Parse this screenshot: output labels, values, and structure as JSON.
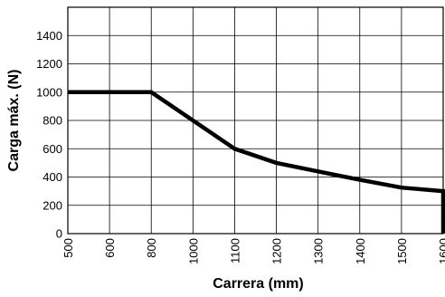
{
  "chart_data": {
    "type": "line",
    "title": "",
    "xlabel": "Carrera (mm)",
    "ylabel": "Carga máx. (N)",
    "xlim": [
      500,
      1600
    ],
    "ylim": [
      0,
      1600
    ],
    "x_ticks": [
      "500",
      "600",
      "800",
      "1000",
      "1100",
      "1200",
      "1300",
      "1400",
      "1500",
      "1600"
    ],
    "y_ticks": [
      "0",
      "200",
      "400",
      "600",
      "800",
      "1000",
      "1200",
      "1400"
    ],
    "grid": true,
    "legend": "none",
    "series": [
      {
        "color": "#000000",
        "points": [
          {
            "x": 500,
            "y": 1000
          },
          {
            "x": 800,
            "y": 1000
          },
          {
            "x": 1000,
            "y": 800
          },
          {
            "x": 1100,
            "y": 600
          },
          {
            "x": 1200,
            "y": 500
          },
          {
            "x": 1300,
            "y": 440
          },
          {
            "x": 1400,
            "y": 380
          },
          {
            "x": 1500,
            "y": 325
          },
          {
            "x": 1600,
            "y": 300
          },
          {
            "x": 1600,
            "y": 0
          }
        ]
      }
    ]
  }
}
